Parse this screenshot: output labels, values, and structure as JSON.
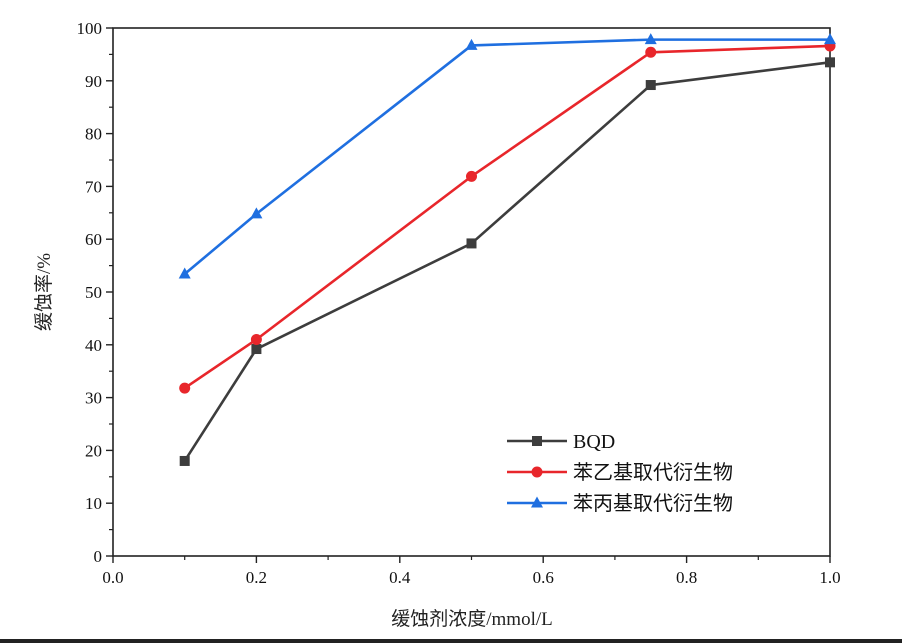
{
  "chart_data": {
    "type": "line",
    "xlabel": "缓蚀剂浓度/mmol/L",
    "ylabel": "缓蚀率/%",
    "xlim": [
      0.0,
      1.0
    ],
    "ylim": [
      0,
      100
    ],
    "xticks": [
      "0.0",
      "0.2",
      "0.4",
      "0.6",
      "0.8",
      "1.0"
    ],
    "yticks": [
      "0",
      "10",
      "20",
      "30",
      "40",
      "50",
      "60",
      "70",
      "80",
      "90",
      "100"
    ],
    "grid": false,
    "legend_position": "bottom-right",
    "x": [
      0.1,
      0.2,
      0.5,
      0.75,
      1.0
    ],
    "series": [
      {
        "name": "BQD",
        "marker": "square",
        "color": "#3d3d3d",
        "values": [
          18,
          39.2,
          59.2,
          89.2,
          93.5
        ]
      },
      {
        "name": "苯乙基取代衍生物",
        "marker": "circle",
        "color": "#e8262b",
        "values": [
          31.8,
          41,
          71.9,
          95.4,
          96.6
        ]
      },
      {
        "name": "苯丙基取代衍生物",
        "marker": "triangle",
        "color": "#1f6fe0",
        "values": [
          53.4,
          64.8,
          96.7,
          97.8,
          97.8
        ]
      }
    ]
  }
}
